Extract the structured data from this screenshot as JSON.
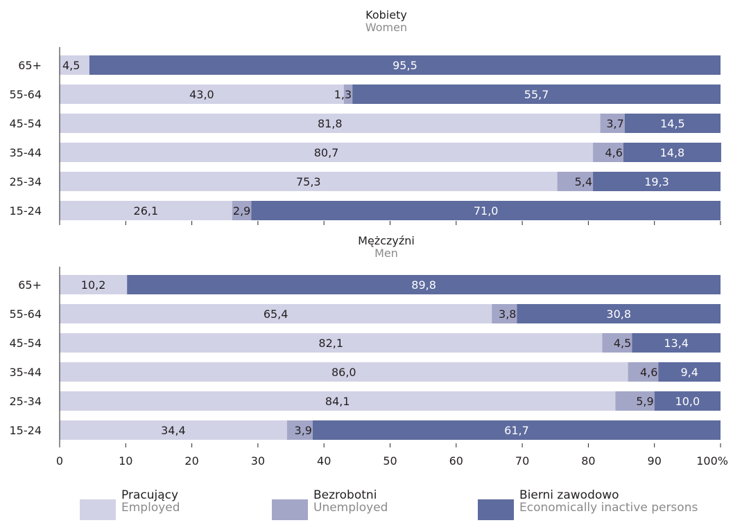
{
  "colors": {
    "employed": "#d1d2e6",
    "unemployed": "#a4a6c8",
    "inactive": "#5e6b9e",
    "axis": "#231f20",
    "label_dark": "#231f20",
    "label_light": "#ffffff",
    "subtitle": "#8a8a8c"
  },
  "legend": [
    {
      "label": "Pracujący",
      "sublabel": "Employed",
      "color_key": "employed"
    },
    {
      "label": "Bezrobotni",
      "sublabel": "Unemployed",
      "color_key": "unemployed"
    },
    {
      "label": "Bierni zawodowo",
      "sublabel": "Economically inactive persons",
      "color_key": "inactive"
    }
  ],
  "chart_data": [
    {
      "type": "bar",
      "orientation": "horizontal",
      "stacked": true,
      "title": "Kobiety",
      "subtitle": "Women",
      "categories": [
        "65+",
        "55-64",
        "45-54",
        "35-44",
        "25-34",
        "15-24"
      ],
      "series": [
        {
          "name": "Pracujący",
          "values": [
            4.5,
            43.0,
            81.8,
            80.7,
            75.3,
            26.1
          ],
          "labels": [
            "4,5",
            "43,0",
            "81,8",
            "80,7",
            "75,3",
            "26,1"
          ]
        },
        {
          "name": "Bezrobotni",
          "values": [
            0,
            1.3,
            3.7,
            4.6,
            5.4,
            2.9
          ],
          "labels": [
            "",
            "1,3",
            "3,7",
            "4,6",
            "5,4",
            "2,9"
          ]
        },
        {
          "name": "Bierni zawodowo",
          "values": [
            95.5,
            55.7,
            14.5,
            14.8,
            19.3,
            71.0
          ],
          "labels": [
            "95,5",
            "55,7",
            "14,5",
            "14,8",
            "19,3",
            "71,0"
          ]
        }
      ],
      "xlim": [
        0,
        100
      ]
    },
    {
      "type": "bar",
      "orientation": "horizontal",
      "stacked": true,
      "title": "Mężczyźni",
      "subtitle": "Men",
      "categories": [
        "65+",
        "55-64",
        "45-54",
        "35-44",
        "25-34",
        "15-24"
      ],
      "series": [
        {
          "name": "Pracujący",
          "values": [
            10.2,
            65.4,
            82.1,
            86.0,
            84.1,
            34.4
          ],
          "labels": [
            "10,2",
            "65,4",
            "82,1",
            "86,0",
            "84,1",
            "34,4"
          ]
        },
        {
          "name": "Bezrobotni",
          "values": [
            0,
            3.8,
            4.5,
            4.6,
            5.9,
            3.9
          ],
          "labels": [
            "",
            "3,8",
            "4,5",
            "4,6",
            "5,9",
            "3,9"
          ]
        },
        {
          "name": "Bierni zawodowo",
          "values": [
            89.8,
            30.8,
            13.4,
            9.4,
            10.0,
            61.7
          ],
          "labels": [
            "89,8",
            "30,8",
            "13,4",
            "9,4",
            "10,0",
            "61,7"
          ]
        }
      ],
      "xlim": [
        0,
        100
      ]
    }
  ],
  "x_axis": {
    "ticks": [
      0,
      10,
      20,
      30,
      40,
      50,
      60,
      70,
      80,
      90,
      100
    ],
    "tick_labels": [
      "0",
      "10",
      "20",
      "30",
      "40",
      "50",
      "60",
      "70",
      "80",
      "90",
      "100%"
    ]
  }
}
